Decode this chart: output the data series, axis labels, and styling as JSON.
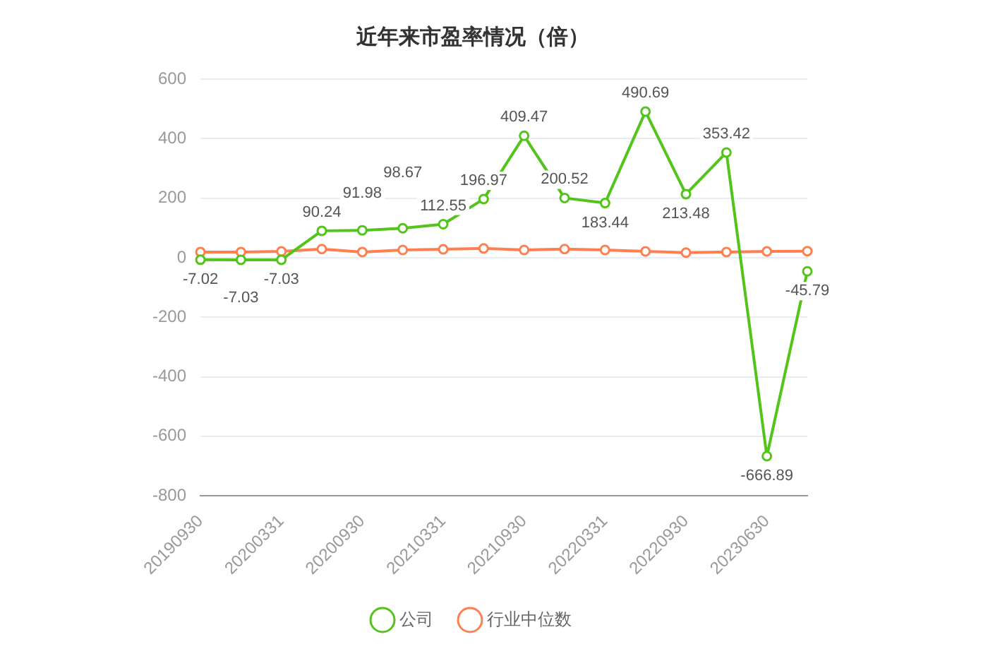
{
  "chart_data": {
    "type": "line",
    "title": "近年来市盈率情况（倍）",
    "categories": [
      "20190930",
      null,
      "20200331",
      null,
      "20200930",
      null,
      "20210331",
      null,
      "20210930",
      null,
      "20220331",
      null,
      "20220930",
      null,
      "20230630",
      null
    ],
    "series": [
      {
        "name": "公司",
        "color": "#52c41a",
        "values": [
          -7.02,
          -7.03,
          -7.03,
          90.24,
          91.98,
          98.67,
          112.55,
          196.97,
          409.47,
          200.52,
          183.44,
          490.69,
          213.48,
          353.42,
          -666.89,
          -45.79
        ],
        "value_labels": [
          "-7.02",
          "-7.03",
          "-7.03",
          "90.24",
          "91.98",
          "98.67",
          "112.55",
          "196.97",
          "409.47",
          "200.52",
          "183.44",
          "490.69",
          "213.48",
          "353.42",
          "-666.89",
          "-45.79"
        ]
      },
      {
        "name": "行业中位数",
        "color": "#ff7f50",
        "values": [
          19,
          19,
          21,
          29,
          19,
          26,
          28,
          31,
          26,
          29,
          26,
          21,
          17,
          19,
          21,
          22
        ]
      }
    ],
    "ylim": [
      -800,
      600
    ],
    "yticks": [
      -800,
      -600,
      -400,
      -200,
      0,
      200,
      400,
      600
    ],
    "grid": "y",
    "legend": "bottom",
    "marker": "circle",
    "line_style": "solid"
  }
}
